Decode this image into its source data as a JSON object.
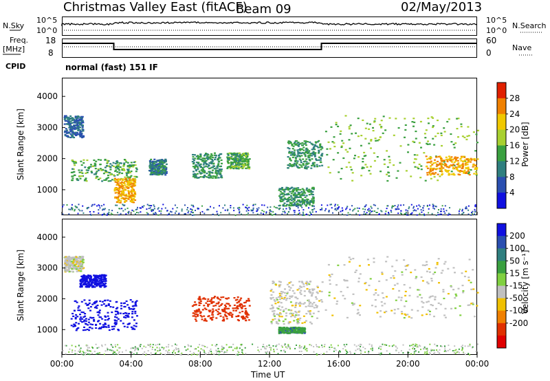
{
  "header": {
    "station": "Christmas Valley East (fitACF)",
    "beam": "Beam 09",
    "date": "02/May/2013"
  },
  "top_panels": {
    "nsky_label": "N.Sky",
    "nsearch_label": "N.Search",
    "noise_ticks_left": [
      "10^5",
      "10^0"
    ],
    "noise_ticks_right": [
      "10^5",
      "10^0"
    ],
    "freq_label": "Freq.",
    "freq_unit": "[MHz]",
    "freq_ticks": [
      "18",
      "8"
    ],
    "nave_label": "Nave",
    "nave_ticks": [
      "60",
      "0"
    ],
    "cpid_label": "CPID",
    "cpid_value": "normal (fast) 151 IF"
  },
  "x_axis": {
    "label": "Time UT",
    "ticks": [
      "00:00",
      "04:00",
      "08:00",
      "12:00",
      "16:00",
      "20:00",
      "00:00"
    ]
  },
  "power_panel": {
    "ylabel": "Slant Range [km]",
    "yticks": [
      "4000",
      "3000",
      "2000",
      "1000"
    ],
    "colorbar_label": "Power [dB]",
    "colorbar_ticks": [
      "28",
      "24",
      "20",
      "16",
      "12",
      "8",
      "4"
    ],
    "colors": [
      "#1010e0",
      "#2a4fb0",
      "#2f7f7f",
      "#3aa040",
      "#a8d030",
      "#f0c800",
      "#f08000",
      "#e02000"
    ]
  },
  "velocity_panel": {
    "ylabel": "Slant Range [km]",
    "yticks": [
      "4000",
      "3000",
      "2000",
      "1000"
    ],
    "colorbar_label": "Velocity [m s⁻¹]",
    "colorbar_ticks": [
      "200",
      "100",
      "50",
      "15",
      "-15",
      "-50",
      "-100",
      "-200"
    ],
    "colors": [
      "#1010e0",
      "#2a4fb0",
      "#2f7f7f",
      "#3aa040",
      "#80d040",
      "#c0c0c0",
      "#f0c000",
      "#f08000",
      "#e03000",
      "#e00000"
    ]
  },
  "chart_data": [
    {
      "type": "heatmap",
      "title": "Power",
      "xlabel": "Time UT",
      "ylabel": "Slant Range [km]",
      "xlim": [
        0,
        24
      ],
      "ylim": [
        180,
        4600
      ],
      "colorbar_range_db": [
        0,
        32
      ],
      "blobs": [
        {
          "t": [
            0.1,
            1.2
          ],
          "r": [
            2700,
            3400
          ],
          "value_db": 8
        },
        {
          "t": [
            0.5,
            4.3
          ],
          "r": [
            1300,
            2000
          ],
          "value_db": 14
        },
        {
          "t": [
            3.0,
            4.2
          ],
          "r": [
            600,
            1400
          ],
          "value_db": 24
        },
        {
          "t": [
            5.0,
            6.0
          ],
          "r": [
            1500,
            2000
          ],
          "value_db": 10
        },
        {
          "t": [
            7.5,
            9.2
          ],
          "r": [
            1400,
            2200
          ],
          "value_db": 12
        },
        {
          "t": [
            9.5,
            10.8
          ],
          "r": [
            1700,
            2200
          ],
          "value_db": 14
        },
        {
          "t": [
            12.5,
            14.5
          ],
          "r": [
            500,
            1100
          ],
          "value_db": 12
        },
        {
          "t": [
            13.0,
            15.0
          ],
          "r": [
            1700,
            2600
          ],
          "value_db": 12
        },
        {
          "t": [
            15.2,
            24.0
          ],
          "r": [
            1300,
            3400
          ],
          "value_db": 16
        },
        {
          "t": [
            21.0,
            24.0
          ],
          "r": [
            1500,
            2100
          ],
          "value_db": 24
        }
      ]
    },
    {
      "type": "heatmap",
      "title": "Velocity",
      "xlabel": "Time UT",
      "ylabel": "Slant Range [km]",
      "xlim": [
        0,
        24
      ],
      "ylim": [
        180,
        4600
      ],
      "colorbar_range_ms": [
        -200,
        200
      ],
      "blobs": [
        {
          "t": [
            0.1,
            1.2
          ],
          "r": [
            2900,
            3400
          ],
          "value_ms": 0
        },
        {
          "t": [
            0.5,
            4.3
          ],
          "r": [
            1000,
            2000
          ],
          "value_ms": 200
        },
        {
          "t": [
            1.0,
            2.5
          ],
          "r": [
            2400,
            2800
          ],
          "value_ms": 200
        },
        {
          "t": [
            7.5,
            10.8
          ],
          "r": [
            1300,
            2100
          ],
          "value_ms": -150
        },
        {
          "t": [
            12.0,
            15.0
          ],
          "r": [
            1200,
            2600
          ],
          "value_ms": 0
        },
        {
          "t": [
            12.5,
            14.0
          ],
          "r": [
            900,
            1100
          ],
          "value_ms": 60
        },
        {
          "t": [
            15.0,
            24.0
          ],
          "r": [
            1400,
            3400
          ],
          "value_ms": 0
        }
      ]
    }
  ]
}
